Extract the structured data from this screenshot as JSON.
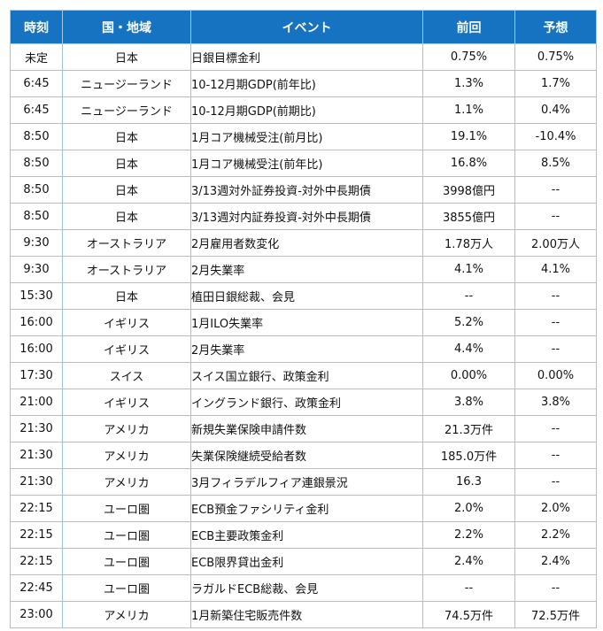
{
  "headers": {
    "time": "時刻",
    "region": "国・地域",
    "event": "イベント",
    "previous": "前回",
    "forecast": "予想"
  },
  "rows": [
    {
      "time": "未定",
      "region": "日本",
      "event": "日銀目標金利",
      "previous": "0.75%",
      "forecast": "0.75%"
    },
    {
      "time": "6:45",
      "region": "ニュージーランド",
      "event": "10-12月期GDP(前年比)",
      "previous": "1.3%",
      "forecast": "1.7%"
    },
    {
      "time": "6:45",
      "region": "ニュージーランド",
      "event": "10-12月期GDP(前期比)",
      "previous": "1.1%",
      "forecast": "0.4%"
    },
    {
      "time": "8:50",
      "region": "日本",
      "event": "1月コア機械受注(前月比)",
      "previous": "19.1%",
      "forecast": "-10.4%"
    },
    {
      "time": "8:50",
      "region": "日本",
      "event": "1月コア機械受注(前年比)",
      "previous": "16.8%",
      "forecast": "8.5%"
    },
    {
      "time": "8:50",
      "region": "日本",
      "event": "3/13週対外証券投資-対外中長期債",
      "previous": "3998億円",
      "forecast": "--"
    },
    {
      "time": "8:50",
      "region": "日本",
      "event": "3/13週対内証券投資-対外中長期債",
      "previous": "3855億円",
      "forecast": "--"
    },
    {
      "time": "9:30",
      "region": "オーストラリア",
      "event": "2月雇用者数変化",
      "previous": "1.78万人",
      "forecast": "2.00万人"
    },
    {
      "time": "9:30",
      "region": "オーストラリア",
      "event": "2月失業率",
      "previous": "4.1%",
      "forecast": "4.1%"
    },
    {
      "time": "15:30",
      "region": "日本",
      "event": "植田日銀総裁、会見",
      "previous": "--",
      "forecast": "--"
    },
    {
      "time": "16:00",
      "region": "イギリス",
      "event": "1月ILO失業率",
      "previous": "5.2%",
      "forecast": "--"
    },
    {
      "time": "16:00",
      "region": "イギリス",
      "event": "2月失業率",
      "previous": "4.4%",
      "forecast": "--"
    },
    {
      "time": "17:30",
      "region": "スイス",
      "event": "スイス国立銀行、政策金利",
      "previous": "0.00%",
      "forecast": "0.00%"
    },
    {
      "time": "21:00",
      "region": "イギリス",
      "event": "イングランド銀行、政策金利",
      "previous": "3.8%",
      "forecast": "3.8%"
    },
    {
      "time": "21:30",
      "region": "アメリカ",
      "event": "新規失業保険申請件数",
      "previous": "21.3万件",
      "forecast": "--"
    },
    {
      "time": "21:30",
      "region": "アメリカ",
      "event": "失業保険継続受給者数",
      "previous": "185.0万件",
      "forecast": "--"
    },
    {
      "time": "21:30",
      "region": "アメリカ",
      "event": "3月フィラデルフィア連銀景況",
      "previous": "16.3",
      "forecast": "--"
    },
    {
      "time": "22:15",
      "region": "ユーロ圏",
      "event": "ECB預金ファシリティ金利",
      "previous": "2.0%",
      "forecast": "2.0%"
    },
    {
      "time": "22:15",
      "region": "ユーロ圏",
      "event": "ECB主要政策金利",
      "previous": "2.2%",
      "forecast": "2.2%"
    },
    {
      "time": "22:15",
      "region": "ユーロ圏",
      "event": "ECB限界貸出金利",
      "previous": "2.4%",
      "forecast": "2.4%"
    },
    {
      "time": "22:45",
      "region": "ユーロ圏",
      "event": "ラガルドECB総裁、会見",
      "previous": "--",
      "forecast": "--"
    },
    {
      "time": "23:00",
      "region": "アメリカ",
      "event": "1月新築住宅販売件数",
      "previous": "74.5万件",
      "forecast": "72.5万件"
    }
  ]
}
